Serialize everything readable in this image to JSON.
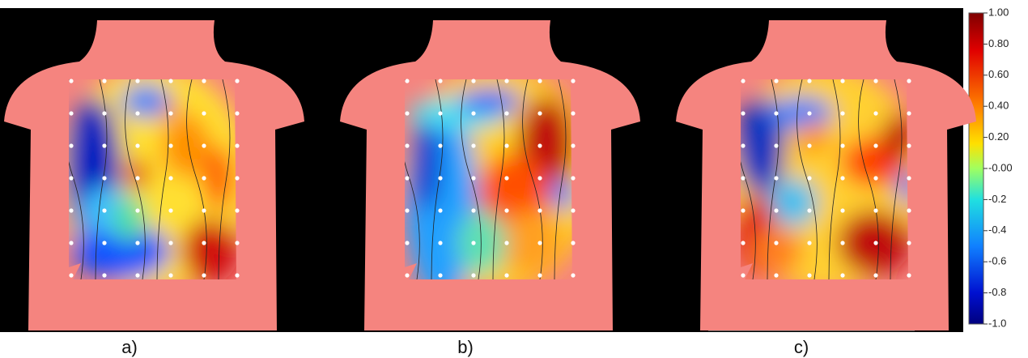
{
  "panels": [
    {
      "label": "a)"
    },
    {
      "label": "b)"
    },
    {
      "label": "c)"
    }
  ],
  "colorbar": {
    "ticks": [
      {
        "value": 1.0,
        "label": "1.00"
      },
      {
        "value": 0.8,
        "label": "0.80"
      },
      {
        "value": 0.6,
        "label": "0.60"
      },
      {
        "value": 0.4,
        "label": "0.40"
      },
      {
        "value": 0.2,
        "label": "0.20"
      },
      {
        "value": 0,
        "label": "-0.00"
      },
      {
        "value": -0.2,
        "label": "-0.2"
      },
      {
        "value": -0.4,
        "label": "-0.4"
      },
      {
        "value": -0.6,
        "label": "-0.6"
      },
      {
        "value": -0.8,
        "label": "-0.8"
      },
      {
        "value": -1.0,
        "label": "-1.0"
      }
    ]
  }
}
